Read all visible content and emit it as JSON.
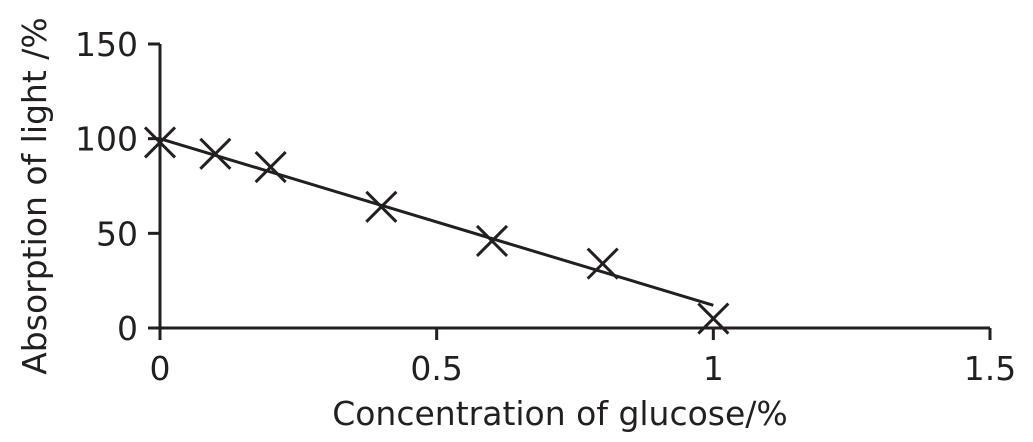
{
  "chart_data": {
    "type": "scatter",
    "title": "",
    "xlabel": "Concentration of glucose/%",
    "ylabel": "Absorption of light /%",
    "xlim": [
      0,
      1.5
    ],
    "ylim": [
      0,
      150
    ],
    "xticks": [
      0,
      0.5,
      1,
      1.5
    ],
    "xtick_labels": [
      "0",
      "0.5",
      "1",
      "1.5"
    ],
    "yticks": [
      0,
      50,
      100,
      150
    ],
    "ytick_labels": [
      "0",
      "50",
      "100",
      "150"
    ],
    "grid": false,
    "marker": "x",
    "color": "#231f20",
    "series": [
      {
        "x": [
          0,
          0.1,
          0.2,
          0.4,
          0.6,
          0.8,
          1.0
        ],
        "y": [
          98,
          92,
          85,
          64,
          46,
          34,
          5
        ]
      }
    ],
    "fit_line": {
      "x": [
        0,
        1.0
      ],
      "y": [
        100,
        12
      ]
    }
  }
}
